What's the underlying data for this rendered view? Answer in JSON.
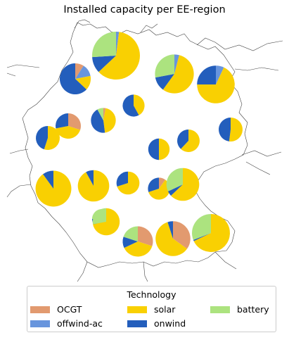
{
  "chart_data": {
    "type": "pie",
    "title": "Installed capacity per EE-region",
    "legend": {
      "title": "Technology",
      "placement": "bottom",
      "entries": [
        {
          "name": "OCGT",
          "color": "#E29A6F"
        },
        {
          "name": "solar",
          "color": "#F9D002"
        },
        {
          "name": "battery",
          "color": "#ACE37F"
        },
        {
          "name": "offwind-ac",
          "color": "#6895DD"
        },
        {
          "name": "onwind",
          "color": "#235EBC"
        }
      ]
    },
    "technologies": [
      "OCGT",
      "offwind-ac",
      "solar",
      "onwind",
      "battery"
    ],
    "regions": [
      {
        "id": "r01",
        "size": 1.0,
        "shares": {
          "OCGT": 0.0,
          "offwind-ac": 0.02,
          "solar": 0.61,
          "onwind": 0.11,
          "battery": 0.26
        }
      },
      {
        "id": "r02",
        "size": 0.42,
        "shares": {
          "OCGT": 0.09,
          "offwind-ac": 0.13,
          "solar": 0.15,
          "onwind": 0.63,
          "battery": 0.0
        }
      },
      {
        "id": "r03",
        "size": 0.66,
        "shares": {
          "OCGT": 0.0,
          "offwind-ac": 0.04,
          "solar": 0.56,
          "onwind": 0.12,
          "battery": 0.28
        }
      },
      {
        "id": "r04",
        "size": 0.62,
        "shares": {
          "OCGT": 0.0,
          "offwind-ac": 0.07,
          "solar": 0.68,
          "onwind": 0.25,
          "battery": 0.0
        }
      },
      {
        "id": "r05",
        "size": 0.21,
        "shares": {
          "OCGT": 0.0,
          "offwind-ac": 0.0,
          "solar": 0.42,
          "onwind": 0.58,
          "battery": 0.0
        }
      },
      {
        "id": "r06",
        "size": 0.27,
        "shares": {
          "OCGT": 0.03,
          "offwind-ac": 0.0,
          "solar": 0.45,
          "onwind": 0.44,
          "battery": 0.08
        }
      },
      {
        "id": "r07",
        "size": 0.28,
        "shares": {
          "OCGT": 0.3,
          "offwind-ac": 0.0,
          "solar": 0.42,
          "onwind": 0.28,
          "battery": 0.0
        }
      },
      {
        "id": "r08",
        "size": 0.25,
        "shares": {
          "OCGT": 0.0,
          "offwind-ac": 0.0,
          "solar": 0.55,
          "onwind": 0.45,
          "battery": 0.0
        }
      },
      {
        "id": "r09",
        "size": 0.25,
        "shares": {
          "OCGT": 0.0,
          "offwind-ac": 0.0,
          "solar": 0.52,
          "onwind": 0.48,
          "battery": 0.0
        }
      },
      {
        "id": "r10",
        "size": 0.22,
        "shares": {
          "OCGT": 0.0,
          "offwind-ac": 0.0,
          "solar": 0.62,
          "onwind": 0.38,
          "battery": 0.0
        }
      },
      {
        "id": "r11",
        "size": 0.2,
        "shares": {
          "OCGT": 0.0,
          "offwind-ac": 0.0,
          "solar": 0.5,
          "onwind": 0.5,
          "battery": 0.0
        }
      },
      {
        "id": "r12",
        "size": 0.56,
        "shares": {
          "OCGT": 0.0,
          "offwind-ac": 0.0,
          "solar": 0.9,
          "onwind": 0.1,
          "battery": 0.0
        }
      },
      {
        "id": "r13",
        "size": 0.43,
        "shares": {
          "OCGT": 0.0,
          "offwind-ac": 0.0,
          "solar": 0.92,
          "onwind": 0.08,
          "battery": 0.0
        }
      },
      {
        "id": "r14",
        "size": 0.23,
        "shares": {
          "OCGT": 0.0,
          "offwind-ac": 0.0,
          "solar": 0.7,
          "onwind": 0.3,
          "battery": 0.0
        }
      },
      {
        "id": "r15",
        "size": 0.21,
        "shares": {
          "OCGT": 0.1,
          "offwind-ac": 0.0,
          "solar": 0.6,
          "onwind": 0.3,
          "battery": 0.0
        }
      },
      {
        "id": "r16",
        "size": 0.47,
        "shares": {
          "OCGT": 0.0,
          "offwind-ac": 0.0,
          "solar": 0.63,
          "onwind": 0.05,
          "battery": 0.32
        }
      },
      {
        "id": "r17",
        "size": 0.17,
        "shares": {
          "OCGT": 0.25,
          "offwind-ac": 0.0,
          "solar": 0.38,
          "onwind": 0.12,
          "battery": 0.25
        }
      },
      {
        "id": "r18",
        "size": 0.32,
        "shares": {
          "OCGT": 0.0,
          "offwind-ac": 0.0,
          "solar": 0.72,
          "onwind": 0.0,
          "battery": 0.28
        }
      },
      {
        "id": "r19",
        "size": 0.4,
        "shares": {
          "OCGT": 0.3,
          "offwind-ac": 0.0,
          "solar": 0.38,
          "onwind": 0.12,
          "battery": 0.2
        }
      },
      {
        "id": "r20",
        "size": 0.53,
        "shares": {
          "OCGT": 0.35,
          "offwind-ac": 0.0,
          "solar": 0.6,
          "onwind": 0.05,
          "battery": 0.0
        }
      },
      {
        "id": "r21",
        "size": 0.63,
        "shares": {
          "OCGT": 0.0,
          "offwind-ac": 0.0,
          "solar": 0.68,
          "onwind": 0.01,
          "battery": 0.31
        }
      }
    ]
  }
}
